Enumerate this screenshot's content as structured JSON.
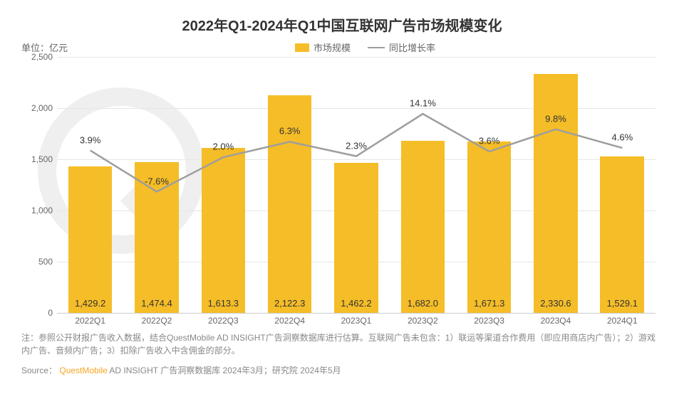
{
  "title": "2022年Q1-2024年Q1中国互联网广告市场规模变化",
  "unit_label": "单位：亿元",
  "legend": {
    "bar_label": "市场规模",
    "line_label": "同比增长率"
  },
  "chart": {
    "type": "bar+line",
    "categories": [
      "2022Q1",
      "2022Q2",
      "2022Q3",
      "2022Q4",
      "2023Q1",
      "2023Q2",
      "2023Q3",
      "2023Q4",
      "2024Q1"
    ],
    "bar_values": [
      1429.2,
      1474.4,
      1613.3,
      2122.3,
      1462.2,
      1682.0,
      1671.3,
      2330.6,
      1529.1
    ],
    "bar_labels": [
      "1,429.2",
      "1,474.4",
      "1,613.3",
      "2,122.3",
      "1,462.2",
      "1,682.0",
      "1,671.3",
      "2,330.6",
      "1,529.1"
    ],
    "line_values": [
      3.9,
      -7.6,
      2.0,
      6.3,
      2.3,
      14.1,
      3.6,
      9.8,
      4.6
    ],
    "line_labels": [
      "3.9%",
      "-7.6%",
      "2.0%",
      "6.3%",
      "2.3%",
      "14.1%",
      "3.6%",
      "9.8%",
      "4.6%"
    ],
    "y_axis": {
      "min": 0,
      "max": 2500,
      "step": 500,
      "ticks": [
        "0",
        "500",
        "1,000",
        "1,500",
        "2,000",
        "2,500"
      ]
    },
    "line_y_center_value": 1450,
    "line_y_amplitude_per_pct": 14,
    "colors": {
      "bar_fill": "#f5bd27",
      "line_stroke": "#9e9e9e",
      "grid": "#e6e6e6",
      "axis": "#cccccc",
      "text": "#333333",
      "muted_text": "#888888",
      "background": "#ffffff"
    },
    "bar_width_ratio": 0.66,
    "line_width": 2,
    "title_fontsize": 20,
    "label_fontsize": 13,
    "tick_fontsize": 12
  },
  "footnote": "注：参照公开财报广告收入数据，结合QuestMobile AD INSIGHT广告洞察数据库进行估算。互联网广告未包含：1）联运等渠道合作费用（即应用商店内广告）；2）游戏内广告、音频内广告；3）扣除广告收入中含佣金的部分。",
  "source": {
    "prefix": "Source：",
    "brand": "QuestMobile",
    "rest": "AD INSIGHT 广告洞察数据库 2024年3月；研究院 2024年5月"
  }
}
